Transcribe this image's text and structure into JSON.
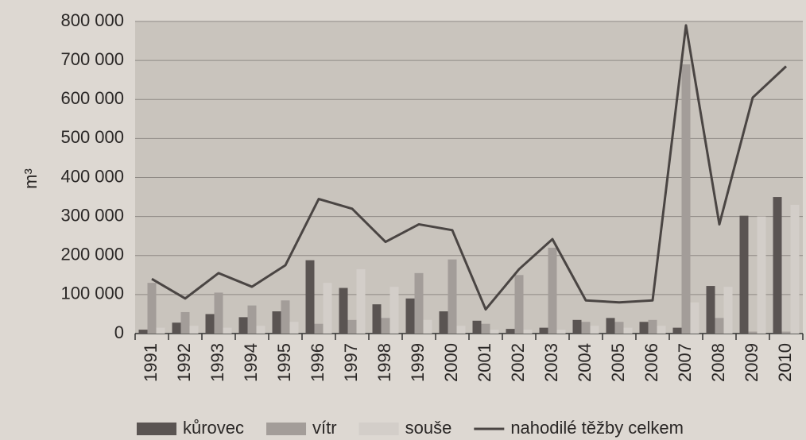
{
  "chart_data": {
    "type": "bar",
    "ylabel": "m³",
    "categories": [
      "1991",
      "1992",
      "1993",
      "1994",
      "1995",
      "1996",
      "1997",
      "1998",
      "1999",
      "2000",
      "2001",
      "2002",
      "2003",
      "2004",
      "2005",
      "2006",
      "2007",
      "2008",
      "2009",
      "2010"
    ],
    "series": [
      {
        "name": "kůrovec",
        "color": "#5a5452",
        "values": [
          10000,
          28000,
          50000,
          42000,
          57000,
          188000,
          117000,
          75000,
          90000,
          57000,
          33000,
          12000,
          15000,
          35000,
          40000,
          30000,
          15000,
          122000,
          302000,
          350000
        ]
      },
      {
        "name": "vítr",
        "color": "#a39d99",
        "values": [
          130000,
          55000,
          105000,
          72000,
          85000,
          25000,
          35000,
          40000,
          155000,
          190000,
          25000,
          150000,
          220000,
          30000,
          30000,
          35000,
          690000,
          40000,
          5000,
          5000
        ]
      },
      {
        "name": "souše",
        "color": "#d3cec9",
        "values": [
          15000,
          20000,
          15000,
          20000,
          30000,
          130000,
          165000,
          120000,
          35000,
          20000,
          10000,
          10000,
          10000,
          20000,
          15000,
          20000,
          80000,
          120000,
          300000,
          330000
        ]
      },
      {
        "name": "nahodilé těžby celkem",
        "type": "line",
        "color": "#4a4543",
        "values": [
          140000,
          90000,
          155000,
          120000,
          175000,
          345000,
          320000,
          235000,
          280000,
          265000,
          62000,
          165000,
          242000,
          85000,
          80000,
          85000,
          790000,
          280000,
          605000,
          685000
        ]
      }
    ],
    "ylim": [
      0,
      800000
    ],
    "yticks": [
      0,
      {
        "value": 100000,
        "label": "100 000"
      },
      {
        "value": 200000,
        "label": "200 000"
      },
      {
        "value": 300000,
        "label": "300 000"
      },
      {
        "value": 400000,
        "label": "400 000"
      },
      {
        "value": 500000,
        "label": "500 000"
      },
      {
        "value": 600000,
        "label": "600 000"
      },
      {
        "value": 700000,
        "label": "700 000"
      },
      {
        "value": 800000,
        "label": "800 000"
      }
    ],
    "grid": true,
    "legend": "bottom"
  }
}
